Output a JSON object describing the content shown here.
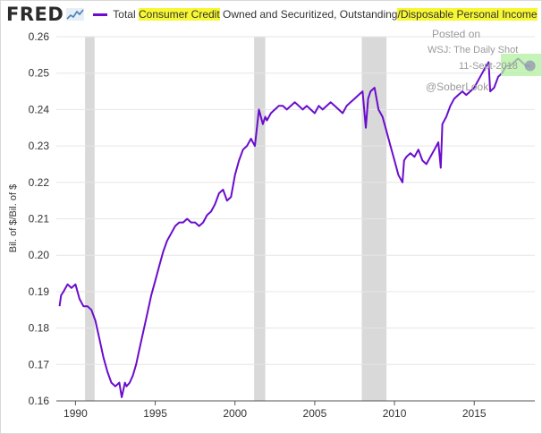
{
  "header": {
    "logo": "FRED",
    "legend": {
      "prefix": "Total ",
      "hl1": "Consumer Credit",
      "middle": " Owned and Securitized, Outstanding",
      "hl2": "/Disposable Personal Income"
    }
  },
  "annotations": {
    "posted_on": "Posted on",
    "source": "WSJ: The Daily Shot",
    "date": "11-Sept-2018",
    "handle": "@SoberLook"
  },
  "colors": {
    "series": "#6a0dcc",
    "recession": "#d9d9d9",
    "highlight": "#f7f733",
    "end_highlight": "#b3f0a0"
  },
  "chart_data": {
    "type": "line",
    "ylabel": "Bil. of $/Bil. of $",
    "xlim": [
      1988.8,
      2018.8
    ],
    "ylim": [
      0.16,
      0.26
    ],
    "yticks": [
      "0.16",
      "0.17",
      "0.18",
      "0.19",
      "0.20",
      "0.21",
      "0.22",
      "0.23",
      "0.24",
      "0.25",
      "0.26"
    ],
    "xticks": [
      "1990",
      "1995",
      "2000",
      "2005",
      "2010",
      "2015"
    ],
    "grid": true,
    "recessions": [
      [
        1990.6,
        1991.2
      ],
      [
        2001.2,
        2001.9
      ],
      [
        2007.95,
        2009.5
      ]
    ],
    "series": [
      {
        "x": [
          1989.0,
          1989.1,
          1989.25,
          1989.5,
          1989.75,
          1990.0,
          1990.25,
          1990.5,
          1990.75,
          1991.0,
          1991.25,
          1991.5,
          1991.75,
          1992.0,
          1992.25,
          1992.5,
          1992.75,
          1992.9,
          1993.0,
          1993.1,
          1993.2,
          1993.4,
          1993.6,
          1993.8,
          1994.0,
          1994.25,
          1994.5,
          1994.75,
          1995.0,
          1995.25,
          1995.5,
          1995.75,
          1996.0,
          1996.25,
          1996.5,
          1996.75,
          1997.0,
          1997.25,
          1997.5,
          1997.75,
          1998.0,
          1998.25,
          1998.5,
          1998.75,
          1999.0,
          1999.25,
          1999.5,
          1999.75,
          2000.0,
          2000.25,
          2000.5,
          2000.75,
          2001.0,
          2001.25,
          2001.5,
          2001.75,
          2001.9,
          2002.0,
          2002.25,
          2002.5,
          2002.75,
          2003.0,
          2003.25,
          2003.5,
          2003.75,
          2004.0,
          2004.25,
          2004.5,
          2004.75,
          2005.0,
          2005.25,
          2005.5,
          2005.75,
          2006.0,
          2006.25,
          2006.5,
          2006.75,
          2007.0,
          2007.25,
          2007.5,
          2007.75,
          2008.0,
          2008.2,
          2008.35,
          2008.5,
          2008.75,
          2009.0,
          2009.25,
          2009.5,
          2009.75,
          2010.0,
          2010.25,
          2010.5,
          2010.6,
          2010.75,
          2011.0,
          2011.25,
          2011.5,
          2011.75,
          2012.0,
          2012.25,
          2012.5,
          2012.75,
          2012.9,
          2013.0,
          2013.25,
          2013.5,
          2013.75,
          2014.0,
          2014.25,
          2014.5,
          2014.75,
          2015.0,
          2015.25,
          2015.5,
          2015.75,
          2015.9,
          2016.0,
          2016.25,
          2016.5,
          2016.75,
          2017.0,
          2017.25,
          2017.5,
          2017.75,
          2018.0,
          2018.25,
          2018.5
        ],
        "y": [
          0.186,
          0.189,
          0.19,
          0.192,
          0.191,
          0.192,
          0.188,
          0.186,
          0.186,
          0.185,
          0.182,
          0.177,
          0.172,
          0.168,
          0.165,
          0.164,
          0.165,
          0.161,
          0.163,
          0.165,
          0.164,
          0.165,
          0.167,
          0.17,
          0.174,
          0.179,
          0.184,
          0.189,
          0.193,
          0.197,
          0.201,
          0.204,
          0.206,
          0.208,
          0.209,
          0.209,
          0.21,
          0.209,
          0.209,
          0.208,
          0.209,
          0.211,
          0.212,
          0.214,
          0.217,
          0.218,
          0.215,
          0.216,
          0.222,
          0.226,
          0.229,
          0.23,
          0.232,
          0.23,
          0.24,
          0.236,
          0.238,
          0.237,
          0.239,
          0.24,
          0.241,
          0.241,
          0.24,
          0.241,
          0.242,
          0.241,
          0.24,
          0.241,
          0.24,
          0.239,
          0.241,
          0.24,
          0.241,
          0.242,
          0.241,
          0.24,
          0.239,
          0.241,
          0.242,
          0.243,
          0.244,
          0.245,
          0.235,
          0.243,
          0.245,
          0.246,
          0.24,
          0.238,
          0.234,
          0.23,
          0.226,
          0.222,
          0.22,
          0.226,
          0.227,
          0.228,
          0.227,
          0.229,
          0.226,
          0.225,
          0.227,
          0.229,
          0.231,
          0.224,
          0.236,
          0.238,
          0.241,
          0.243,
          0.244,
          0.245,
          0.244,
          0.245,
          0.246,
          0.248,
          0.25,
          0.252,
          0.253,
          0.245,
          0.246,
          0.249,
          0.25,
          0.252,
          0.252,
          0.253,
          0.254,
          0.253,
          0.252,
          0.252
        ]
      }
    ]
  }
}
